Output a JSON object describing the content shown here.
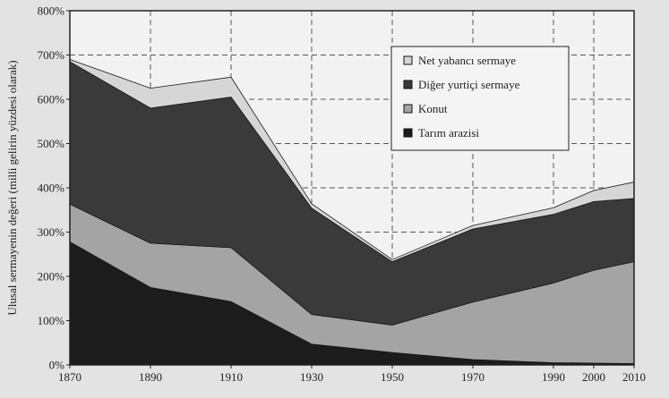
{
  "chart_data": {
    "type": "area",
    "stacked": true,
    "title": "",
    "xlabel": "",
    "ylabel": "Ulusal sermayenin değeri (milli gelirin yüzdesi olarak)",
    "x": [
      1870,
      1890,
      1910,
      1930,
      1950,
      1970,
      1990,
      2000,
      2010
    ],
    "xticks": [
      "1870",
      "1890",
      "1910",
      "1930",
      "1950",
      "1970",
      "1990",
      "2000",
      "2010"
    ],
    "ylim": [
      0,
      800
    ],
    "yticks": [
      "0%",
      "100%",
      "200%",
      "300%",
      "400%",
      "500%",
      "600%",
      "700%",
      "800%"
    ],
    "grid": true,
    "legend_position": "top-right",
    "series": [
      {
        "name": "Tarım arazisi",
        "color": "#1c1c1c",
        "values": [
          278,
          175,
          143,
          47,
          28,
          12,
          5,
          4,
          3
        ]
      },
      {
        "name": "Konut",
        "color": "#a4a4a4",
        "values": [
          85,
          100,
          122,
          67,
          62,
          130,
          180,
          210,
          230
        ]
      },
      {
        "name": "Diğer yurtiçi sermaye",
        "color": "#3a3a3a",
        "values": [
          322,
          305,
          340,
          240,
          143,
          165,
          155,
          155,
          143
        ]
      },
      {
        "name": "Net yabancı sermaye",
        "color": "#d6d6d6",
        "values": [
          5,
          45,
          45,
          10,
          5,
          8,
          15,
          25,
          37
        ]
      }
    ]
  }
}
